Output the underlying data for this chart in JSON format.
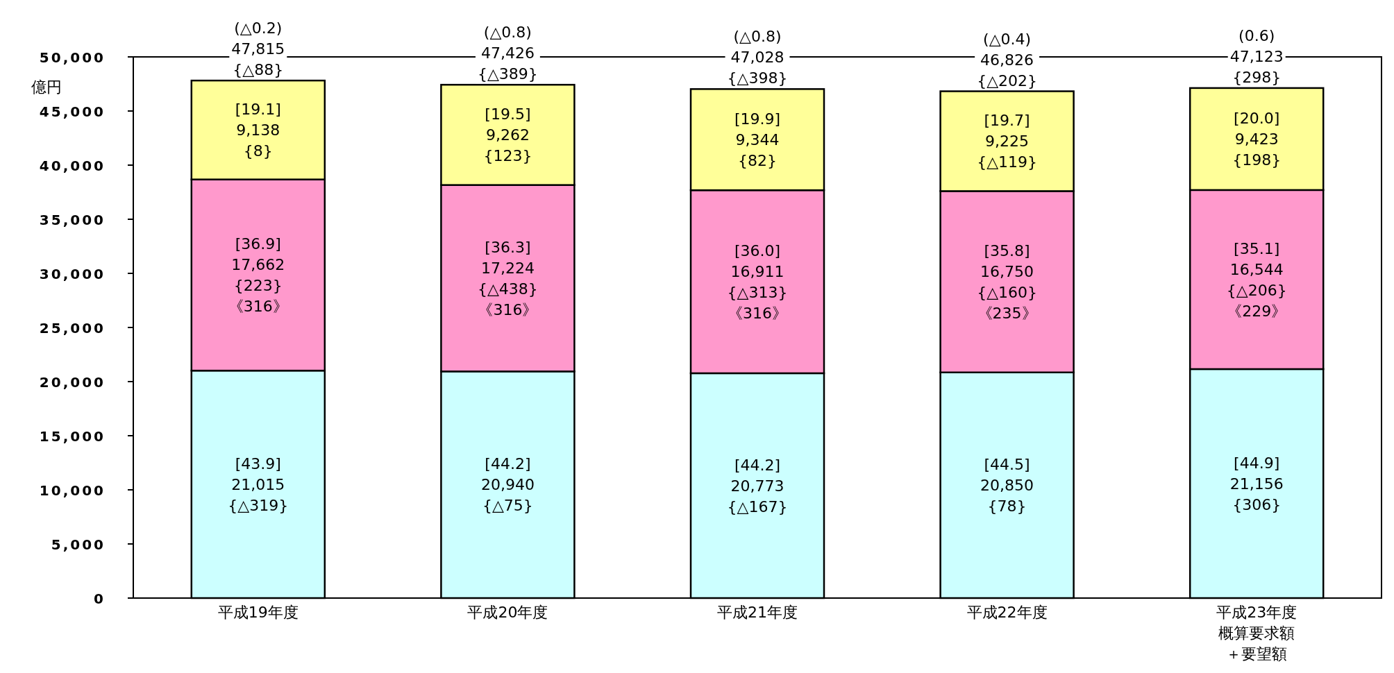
{
  "chart_data": {
    "type": "bar",
    "stacked": true,
    "ylabel": "億円",
    "categories": [
      "平成19年度",
      "平成20年度",
      "平成21年度",
      "平成22年度",
      "平成23年度概算要求額＋要望額"
    ],
    "series": [
      {
        "color": "#ccffff",
        "values": [
          21015,
          20940,
          20773,
          20850,
          21156
        ],
        "value_labels": [
          "[43.9]\n21,015\n{△319}",
          "[44.2]\n20,940\n{△75}",
          "[44.2]\n20,773\n{△167}",
          "[44.5]\n20,850\n{78}",
          "[44.9]\n21,156\n{306}"
        ]
      },
      {
        "color": "#ff99cc",
        "values": [
          17662,
          17224,
          16911,
          16750,
          16544
        ],
        "value_labels": [
          "[36.9]\n17,662\n{223}\n《316》",
          "[36.3]\n17,224\n{△438}\n《316》",
          "[36.0]\n16,911\n{△313}\n《316》",
          "[35.8]\n16,750\n{△160}\n《235》",
          "[35.1]\n16,544\n{△206}\n《229》"
        ]
      },
      {
        "color": "#ffff99",
        "values": [
          9138,
          9262,
          9344,
          9225,
          9423
        ],
        "value_labels": [
          "[19.1]\n9,138\n{8}",
          "[19.5]\n9,262\n{123}",
          "[19.9]\n9,344\n{82}",
          "[19.7]\n9,225\n{△119}",
          "[20.0]\n9,423\n{198}"
        ]
      }
    ],
    "totals": [
      "(△0.2)\n47,815\n{△88}",
      "(△0.8)\n47,426\n{△389}",
      "(△0.8)\n47,028\n{△398}",
      "(△0.4)\n46,826\n{△202}",
      "(0.6)\n47,123\n{298}"
    ],
    "ylim": [
      0,
      50000
    ],
    "yticks": [
      {
        "value": 0,
        "label": "0"
      },
      {
        "value": 5000,
        "label": "5,000"
      },
      {
        "value": 10000,
        "label": "10,000"
      },
      {
        "value": 15000,
        "label": "15,000"
      },
      {
        "value": 20000,
        "label": "20,000"
      },
      {
        "value": 25000,
        "label": "25,000"
      },
      {
        "value": 30000,
        "label": "30,000"
      },
      {
        "value": 35000,
        "label": "35,000"
      },
      {
        "value": 40000,
        "label": "40,000"
      },
      {
        "value": 45000,
        "label": "45,000"
      },
      {
        "value": 50000,
        "label": "50,000"
      }
    ],
    "grid": false
  }
}
